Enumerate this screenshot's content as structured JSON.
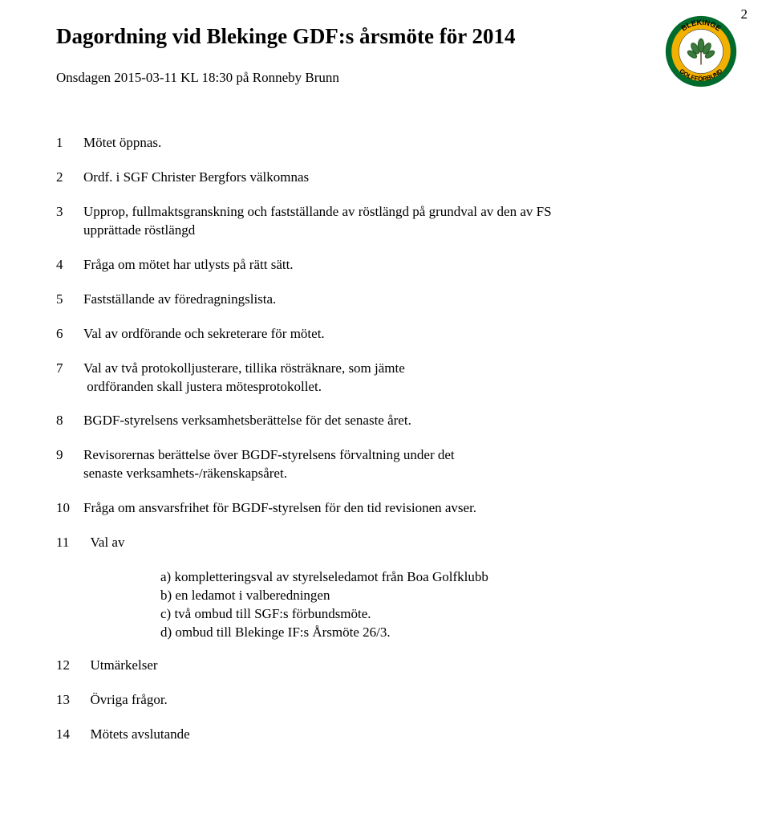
{
  "pageNumber": "2",
  "title": "Dagordning vid Blekinge GDF:s årsmöte för 2014",
  "subtitle": "Onsdagen 2015-03-11 KL 18:30 på Ronneby Brunn",
  "logo": {
    "topText": "BLEKINGE",
    "bottomText": "GOLFFÖRBUND",
    "outerColor": "#f2b000",
    "ringColor": "#006b2d",
    "innerColor": "#f2b000",
    "textColor": "#000000"
  },
  "items": [
    {
      "n": "1",
      "t": "Mötet öppnas."
    },
    {
      "n": "2",
      "t": "Ordf. i SGF Christer Bergfors välkomnas"
    },
    {
      "n": "3",
      "t": "Upprop, fullmaktsgranskning och fastställande av röstlängd på grundval av den av FS\nupprättade röstlängd"
    },
    {
      "n": "4",
      "t": "Fråga om mötet har utlysts på rätt sätt."
    },
    {
      "n": "5",
      "t": "Fastställande av föredragningslista."
    },
    {
      "n": "6",
      "t": "Val av ordförande och sekreterare för mötet."
    },
    {
      "n": "7",
      "t": "Val av två protokolljusterare, tillika rösträknare, som jämte\n ordföranden skall justera mötesprotokollet."
    },
    {
      "n": "8",
      "t": "BGDF-styrelsens verksamhetsberättelse för det senaste året."
    },
    {
      "n": "9",
      "t": "Revisorernas berättelse över BGDF-styrelsens förvaltning under det\nsenaste verksamhets-/räkenskapsåret."
    },
    {
      "n": "10",
      "t": "Fråga om ansvarsfrihet för BGDF-styrelsen för den tid revisionen avser."
    },
    {
      "n": "11",
      "t": "  Val av"
    },
    {
      "n": "12",
      "t": "  Utmärkelser"
    },
    {
      "n": "13",
      "t": "  Övriga frågor."
    },
    {
      "n": "14",
      "t": "  Mötets avslutande"
    }
  ],
  "sub11": [
    "a) kompletteringsval av styrelseledamot från Boa Golfklubb",
    "b) en ledamot i valberedningen",
    "c) två ombud till SGF:s förbundsmöte.",
    "d) ombud till Blekinge IF:s Årsmöte 26/3."
  ]
}
